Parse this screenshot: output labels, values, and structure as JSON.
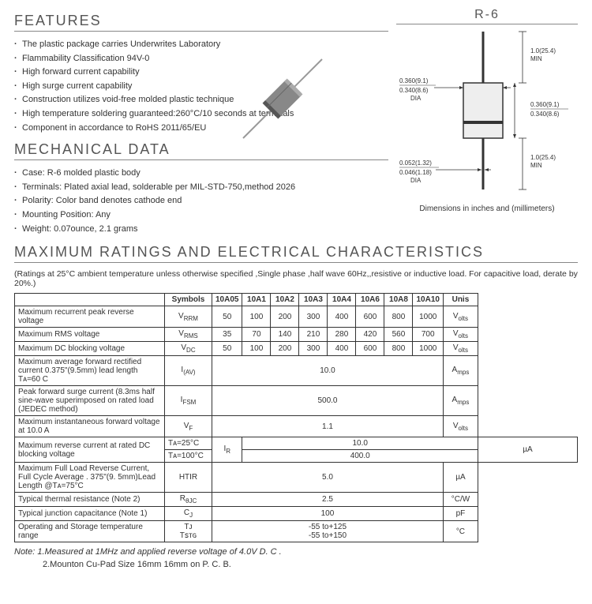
{
  "features": {
    "title": "FEATURES",
    "items": [
      "The plastic package carries Underwrites Laboratory",
      "Flammability Classification 94V-0",
      "High forward current capability",
      "High surge current capability",
      "Construction utilizes void-free molded plastic technique",
      "High temperature soldering guaranteed:260°C/10 seconds at terminals",
      "Component in accordance to RoHS 2011/65/EU"
    ]
  },
  "mechanical": {
    "title": "MECHANICAL DATA",
    "items": [
      "Case: R-6 molded plastic body",
      "Terminals: Plated axial lead, solderable per MIL-STD-750,method 2026",
      "Polarity: Color band denotes cathode end",
      "Mounting Position: Any",
      "Weight: 0.07ounce, 2.1 grams"
    ]
  },
  "package": {
    "title": "R-6",
    "caption": "Dimensions in inches and (millimeters)",
    "dims": {
      "lead_len": "1.0(25.4)\nMIN",
      "body_dia_top": "0.360(9.1)",
      "body_dia_bot": "0.340(8.6)",
      "body_dia_label": "DIA",
      "body_len_top": "0.360(9.1)",
      "body_len_bot": "0.340(8.6)",
      "lead_dia_top": "0.052(1.32)",
      "lead_dia_bot": "0.046(1.18)",
      "lead_dia_label": "DIA"
    }
  },
  "ratings": {
    "title": "MAXIMUM RATINGS AND ELECTRICAL CHARACTERISTICS",
    "note": "(Ratings at 25°C ambient temperature unless otherwise specified ,Single phase ,half wave 60Hz,,resistive or inductive load. For capacitive load, derate by 20%.)",
    "headers": {
      "symbols": "Symbols",
      "units": "Unis",
      "parts": [
        "10A05",
        "10A1",
        "10A2",
        "10A3",
        "10A4",
        "10A6",
        "10A8",
        "10A10"
      ]
    },
    "rows": [
      {
        "param": "Maximum recurrent peak reverse voltage",
        "sym": "V",
        "sub": "RRM",
        "vals": [
          "50",
          "100",
          "200",
          "300",
          "400",
          "600",
          "800",
          "1000"
        ],
        "span": false,
        "unit": "V",
        "usub": "olts"
      },
      {
        "param": "Maximum RMS voltage",
        "sym": "V",
        "sub": "RMS",
        "vals": [
          "35",
          "70",
          "140",
          "210",
          "280",
          "420",
          "560",
          "700"
        ],
        "span": false,
        "unit": "V",
        "usub": "olts"
      },
      {
        "param": "Maximum DC blocking voltage",
        "sym": "V",
        "sub": "DC",
        "vals": [
          "50",
          "100",
          "200",
          "300",
          "400",
          "600",
          "800",
          "1000"
        ],
        "span": false,
        "unit": "V",
        "usub": "olts"
      },
      {
        "param": "Maximum average forward rectified current 0.375\"(9.5mm) lead length Tᴀ=60 C",
        "sym": "I",
        "sub": "(AV)",
        "vals": [
          "10.0"
        ],
        "span": true,
        "unit": "A",
        "usub": "mps"
      },
      {
        "param": "Peak forward surge current (8.3ms half sine-wave superimposed on rated load (JEDEC method)",
        "sym": "I",
        "sub": "FSM",
        "vals": [
          "500.0"
        ],
        "span": true,
        "unit": "A",
        "usub": "mps"
      },
      {
        "param": "Maximum instantaneous forward voltage at 10.0 A",
        "sym": "V",
        "sub": "F",
        "vals": [
          "1.1"
        ],
        "span": true,
        "unit": "V",
        "usub": "olts"
      },
      {
        "param": "Maximum reverse current at rated DC blocking voltage",
        "cond": [
          "Tᴀ=25°C",
          "Tᴀ=100°C"
        ],
        "sym": "I",
        "sub": "R",
        "vals": [
          "10.0",
          "400.0"
        ],
        "span": true,
        "multi": true,
        "unit": "µA",
        "usub": ""
      },
      {
        "param": "Maximum Full Load Reverse Current, Full Cycle Average . 375\"(9. 5mm)Lead Length @Tᴀ=75°C",
        "sym": "HTIR",
        "sub": "",
        "vals": [
          "5.0"
        ],
        "span": true,
        "unit": "µA",
        "usub": ""
      },
      {
        "param": "Typical thermal resistance (Note 2)",
        "sym": "R",
        "sub": "θJC",
        "vals": [
          "2.5"
        ],
        "span": true,
        "unit": "°C/W",
        "usub": ""
      },
      {
        "param": "Typical junction capacitance (Note 1)",
        "sym": "C",
        "sub": "J",
        "vals": [
          "100"
        ],
        "span": true,
        "unit": "pF",
        "usub": ""
      },
      {
        "param": "Operating and Storage temperature range",
        "sym": "Tᴊ\nTꜱᴛɢ",
        "sub": "",
        "vals": [
          "-55 to+125\n-55 to+150"
        ],
        "span": true,
        "unit": "°C",
        "usub": ""
      }
    ],
    "footnote1": "Note: 1.Measured at 1MHz and applied reverse voltage of 4.0V D. C .",
    "footnote2": "2.Mounton Cu-Pad Size 16mm   16mm on P. C. B."
  }
}
